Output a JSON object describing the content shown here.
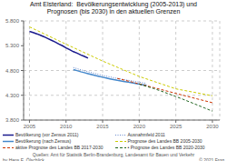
{
  "chart_data": {
    "type": "line",
    "title": "Amt Elsterland:  Bevölkerungsentwicklung (2005-2013) und\nPrognosen (bis 2030) in den aktuellen Grenzen",
    "xlim": [
      2004.2,
      2031.0
    ],
    "ylim": [
      3800,
      5800
    ],
    "xticks": [
      2005,
      2010,
      2015,
      2020,
      2025,
      2030
    ],
    "yticks": [
      {
        "value": 3800,
        "label": "3.800"
      },
      {
        "value": 4300,
        "label": "4.300"
      },
      {
        "value": 4800,
        "label": "4.800"
      },
      {
        "value": 5300,
        "label": "5.300"
      },
      {
        "value": 5800,
        "label": "5.800"
      }
    ],
    "grid": true,
    "legend": "bottom",
    "series": [
      {
        "name": "Bevölkerung (vor Zensus 2011)",
        "color": "#1a1a8c",
        "line_style": "solid",
        "x": [
          2005,
          2005.5,
          2006,
          2006.5,
          2007,
          2007.5,
          2008,
          2008.5,
          2009,
          2009.5,
          2010,
          2010.5,
          2011,
          2011.5,
          2012,
          2012.5,
          2013
        ],
        "values": [
          5590,
          5565,
          5540,
          5510,
          5480,
          5445,
          5410,
          5375,
          5335,
          5300,
          5255,
          5220,
          5180,
          5150,
          5115,
          5085,
          5050
        ]
      },
      {
        "name": "Ausnahmfeld 2011",
        "color": "#6688cc",
        "line_style": "dotted",
        "x": [
          2011,
          2011.5,
          2012,
          2012.5,
          2013,
          2013.5,
          2014,
          2014.5,
          2015,
          2015.5,
          2016,
          2016.5,
          2017,
          2017.5,
          2018,
          2018.5,
          2019,
          2019.5,
          2020,
          2020.5,
          2021
        ],
        "values": [
          4860,
          4838,
          4815,
          4796,
          4776,
          4757,
          4738,
          4720,
          4703,
          4686,
          4670,
          4655,
          4640,
          4628,
          4615,
          4602,
          4590,
          4578,
          4565,
          4552,
          4540
        ]
      },
      {
        "name": "Bevölkerung (nach Zensus)",
        "color": "#4488cc",
        "line_style": "solid",
        "x": [
          2011,
          2011.5,
          2012,
          2012.5,
          2013,
          2013.5,
          2014,
          2014.5,
          2015,
          2015.5,
          2016,
          2016.5,
          2017,
          2017.5,
          2018,
          2018.5,
          2019,
          2019.5,
          2020,
          2020.5,
          2021
        ],
        "values": [
          4820,
          4798,
          4775,
          4756,
          4737,
          4718,
          4699,
          4682,
          4665,
          4648,
          4632,
          4617,
          4602,
          4590,
          4577,
          4564,
          4551,
          4538,
          4525,
          4512,
          4500
        ]
      },
      {
        "name": "Prognose des Landes BB 2005-2030",
        "color": "#cccc00",
        "line_style": "dashed",
        "x": [
          2005,
          2010,
          2015,
          2020,
          2025,
          2030
        ],
        "values": [
          5680,
          5330,
          4990,
          4680,
          4430,
          4290
        ]
      },
      {
        "name": "aktive Prognose des Landes BB 2017-2030",
        "color": "#cc3300",
        "line_style": "dashed",
        "x": [
          2017,
          2018,
          2019,
          2020,
          2021,
          2022,
          2023,
          2024,
          2025,
          2026,
          2027,
          2028,
          2029,
          2030
        ],
        "values": [
          4640,
          4605,
          4568,
          4530,
          4492,
          4454,
          4416,
          4377,
          4338,
          4300,
          4262,
          4224,
          4187,
          4150
        ]
      },
      {
        "name": "• Prognose des Landes BB 2020-2030",
        "color": "#226622",
        "line_style": "dashed",
        "x": [
          2020,
          2021,
          2022,
          2023,
          2024,
          2025,
          2026,
          2027,
          2028,
          2029,
          2030
        ],
        "values": [
          4525,
          4480,
          4435,
          4385,
          4330,
          4275,
          4218,
          4160,
          4100,
          4040,
          3980
        ]
      }
    ],
    "annotations": [
      "by Hans E. Ölschlick",
      "Quellen: Amt für Statistik Berlin-Brandenburg, Landesamt für Bauen und Verkehr",
      "© 2021 Frog"
    ]
  }
}
